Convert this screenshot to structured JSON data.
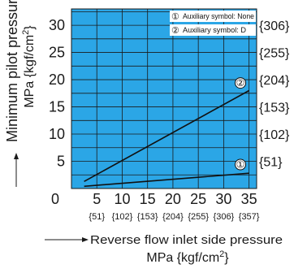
{
  "chart_data": {
    "type": "line",
    "ylabel": "Minimum pilot pressure",
    "ylabel_unit": "MPa {kgf/cm",
    "ylabel_unit_sup": "2",
    "ylabel_unit_close": "}",
    "xlabel": "Reverse flow inlet side pressure",
    "xlabel_unit": "MPa {kgf/cm",
    "xlabel_unit_sup": "2",
    "xlabel_unit_close": "}",
    "xlim": [
      0,
      36.5
    ],
    "ylim": [
      0,
      33
    ],
    "grid": true,
    "plot_background": "#2ba6e6",
    "x_ticks": [
      {
        "value": 0,
        "label": "0",
        "sub": ""
      },
      {
        "value": 5,
        "label": "5",
        "sub": "{51}"
      },
      {
        "value": 10,
        "label": "10",
        "sub": "{102}"
      },
      {
        "value": 15,
        "label": "15",
        "sub": "{153}"
      },
      {
        "value": 20,
        "label": "20",
        "sub": "{204}"
      },
      {
        "value": 25,
        "label": "25",
        "sub": "{255}"
      },
      {
        "value": 30,
        "label": "30",
        "sub": "{306}"
      },
      {
        "value": 35,
        "label": "35",
        "sub": "{357}"
      }
    ],
    "y_ticks": [
      {
        "value": 5,
        "label": "5",
        "right": "{51}"
      },
      {
        "value": 10,
        "label": "10",
        "right": "{102}"
      },
      {
        "value": 15,
        "label": "15",
        "right": "{153}"
      },
      {
        "value": 20,
        "label": "20",
        "right": "{204}"
      },
      {
        "value": 25,
        "label": "25",
        "right": "{255}"
      },
      {
        "value": 30,
        "label": "30",
        "right": "{306}"
      }
    ],
    "x_grid": [
      5,
      10,
      15,
      20,
      25,
      30,
      35
    ],
    "y_grid": [
      2.5,
      5,
      7.5,
      10,
      12.5,
      15,
      17.5,
      20,
      22.5,
      25,
      27.5,
      30,
      32.5
    ],
    "series": [
      {
        "marker": "①",
        "x": [
          2.5,
          35
        ],
        "y": [
          0.4,
          2.8
        ],
        "color": "#111111",
        "label_at": [
          33.3,
          4.4
        ]
      },
      {
        "marker": "②",
        "x": [
          2.5,
          35
        ],
        "y": [
          1.3,
          18.0
        ],
        "color": "#111111",
        "label_at": [
          33.3,
          19.4
        ]
      }
    ],
    "legend": {
      "position": "top-right",
      "entries": [
        {
          "marker": "①",
          "text": "Auxiliary symbol: None"
        },
        {
          "marker": "②",
          "text": "Auxiliary symbol: D"
        }
      ]
    }
  }
}
